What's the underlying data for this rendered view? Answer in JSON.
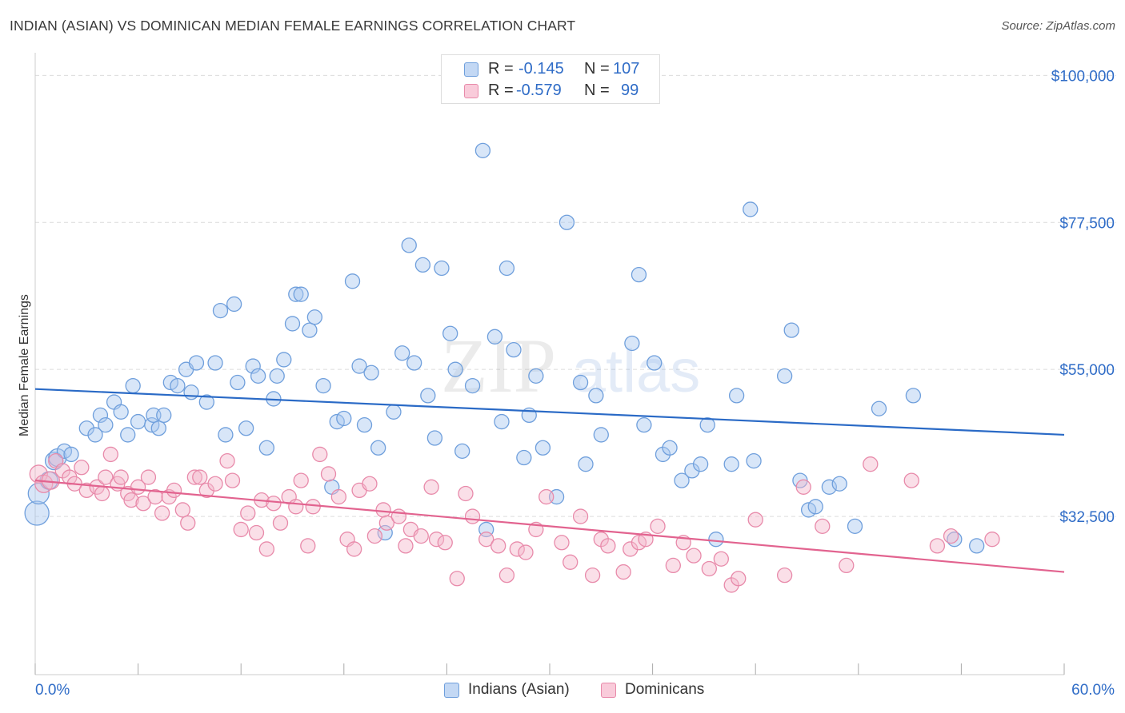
{
  "header": {
    "title": "INDIAN (ASIAN) VS DOMINICAN MEDIAN FEMALE EARNINGS CORRELATION CHART",
    "source": "Source: ZipAtlas.com"
  },
  "watermark": {
    "zip": "ZIP",
    "atlas": "atlas"
  },
  "stats_legend": {
    "rows": [
      {
        "r_label": "R =",
        "r_value": "-0.145",
        "n_label": "N =",
        "n_value": "107"
      },
      {
        "r_label": "R =",
        "r_value": "-0.579",
        "n_label": "N =",
        "n_value": "99"
      }
    ]
  },
  "bottom_legend": {
    "items": [
      {
        "label": "Indians (Asian)"
      },
      {
        "label": "Dominicans"
      }
    ]
  },
  "colors": {
    "blue_fill": "#a9c8ef",
    "blue_stroke": "#6f9fdc",
    "blue_line": "#2a6ac6",
    "pink_fill": "#f5b8cc",
    "pink_stroke": "#e88aaa",
    "pink_line": "#e2638f",
    "axis_label": "#2f6cc7",
    "grid": "#dcdcdc"
  },
  "chart_data": {
    "type": "scatter",
    "title": "INDIAN (ASIAN) VS DOMINICAN MEDIAN FEMALE EARNINGS CORRELATION CHART",
    "xlabel": "",
    "ylabel": "Median Female Earnings",
    "xlim": [
      0,
      60
    ],
    "ylim": [
      10000,
      102000
    ],
    "x_tick_labels": [
      "0.0%",
      "60.0%"
    ],
    "y_ticks": [
      32500,
      55000,
      77500,
      100000
    ],
    "y_tick_labels": [
      "$32,500",
      "$55,000",
      "$77,500",
      "$100,000"
    ],
    "grid": true,
    "legend_position": "top-center",
    "series": [
      {
        "name": "Indians (Asian)",
        "trend": {
          "x": [
            0,
            60
          ],
          "y": [
            52000,
            45000
          ]
        },
        "points": [
          [
            0.1,
            33000
          ],
          [
            0.2,
            36000
          ],
          [
            0.8,
            38000
          ],
          [
            1.1,
            41000
          ],
          [
            1.3,
            41500
          ],
          [
            1.7,
            42500
          ],
          [
            2.1,
            42000
          ],
          [
            3.0,
            46000
          ],
          [
            3.5,
            45000
          ],
          [
            3.8,
            48000
          ],
          [
            4.1,
            46500
          ],
          [
            4.6,
            50000
          ],
          [
            5.0,
            48500
          ],
          [
            5.4,
            45000
          ],
          [
            5.7,
            52500
          ],
          [
            6.0,
            47000
          ],
          [
            6.8,
            46500
          ],
          [
            6.9,
            48000
          ],
          [
            7.2,
            46000
          ],
          [
            7.5,
            48000
          ],
          [
            7.9,
            53000
          ],
          [
            8.3,
            52500
          ],
          [
            8.8,
            55000
          ],
          [
            9.1,
            51500
          ],
          [
            9.4,
            56000
          ],
          [
            10.0,
            50000
          ],
          [
            10.5,
            56000
          ],
          [
            10.8,
            64000
          ],
          [
            11.1,
            45000
          ],
          [
            11.6,
            65000
          ],
          [
            11.8,
            53000
          ],
          [
            12.3,
            46000
          ],
          [
            12.7,
            55500
          ],
          [
            13.0,
            54000
          ],
          [
            13.5,
            43000
          ],
          [
            13.9,
            50500
          ],
          [
            14.1,
            54000
          ],
          [
            14.5,
            56500
          ],
          [
            15.0,
            62000
          ],
          [
            15.2,
            66500
          ],
          [
            15.5,
            66500
          ],
          [
            16.0,
            61000
          ],
          [
            16.3,
            63000
          ],
          [
            16.8,
            52500
          ],
          [
            17.3,
            37000
          ],
          [
            17.6,
            47000
          ],
          [
            18.0,
            47500
          ],
          [
            18.5,
            68500
          ],
          [
            18.9,
            55500
          ],
          [
            19.2,
            46500
          ],
          [
            19.6,
            54500
          ],
          [
            20.0,
            43000
          ],
          [
            20.4,
            30000
          ],
          [
            20.9,
            48500
          ],
          [
            21.4,
            57500
          ],
          [
            21.8,
            74000
          ],
          [
            22.1,
            56000
          ],
          [
            22.6,
            71000
          ],
          [
            22.9,
            51000
          ],
          [
            23.3,
            44500
          ],
          [
            23.7,
            70500
          ],
          [
            24.2,
            60500
          ],
          [
            24.5,
            55000
          ],
          [
            24.9,
            42500
          ],
          [
            25.5,
            52500
          ],
          [
            26.1,
            88500
          ],
          [
            26.3,
            30500
          ],
          [
            26.8,
            60000
          ],
          [
            27.2,
            47000
          ],
          [
            27.5,
            70500
          ],
          [
            27.9,
            58000
          ],
          [
            28.5,
            41500
          ],
          [
            28.8,
            48000
          ],
          [
            29.2,
            54000
          ],
          [
            29.6,
            43000
          ],
          [
            30.4,
            35500
          ],
          [
            31.0,
            77500
          ],
          [
            31.8,
            53000
          ],
          [
            32.1,
            40500
          ],
          [
            32.7,
            51000
          ],
          [
            33.0,
            45000
          ],
          [
            34.8,
            59000
          ],
          [
            35.2,
            69500
          ],
          [
            35.5,
            46500
          ],
          [
            36.1,
            56000
          ],
          [
            36.6,
            42000
          ],
          [
            37.0,
            43000
          ],
          [
            37.7,
            38000
          ],
          [
            38.3,
            39500
          ],
          [
            38.8,
            40500
          ],
          [
            39.2,
            46500
          ],
          [
            39.7,
            29000
          ],
          [
            40.6,
            40500
          ],
          [
            40.9,
            51000
          ],
          [
            41.7,
            79500
          ],
          [
            41.9,
            41000
          ],
          [
            43.7,
            54000
          ],
          [
            44.1,
            61000
          ],
          [
            44.6,
            38000
          ],
          [
            45.1,
            33500
          ],
          [
            45.5,
            34000
          ],
          [
            46.3,
            37000
          ],
          [
            46.9,
            37500
          ],
          [
            47.8,
            31000
          ],
          [
            49.2,
            49000
          ],
          [
            51.2,
            51000
          ],
          [
            53.6,
            29000
          ],
          [
            54.9,
            28000
          ]
        ]
      },
      {
        "name": "Dominicans",
        "trend": {
          "x": [
            0,
            60
          ],
          "y": [
            38000,
            24000
          ]
        },
        "points": [
          [
            0.2,
            39000
          ],
          [
            0.5,
            37500
          ],
          [
            0.9,
            38000
          ],
          [
            1.2,
            41000
          ],
          [
            1.6,
            39500
          ],
          [
            2.0,
            38500
          ],
          [
            2.3,
            37500
          ],
          [
            2.7,
            40000
          ],
          [
            3.0,
            36500
          ],
          [
            3.6,
            37000
          ],
          [
            3.9,
            36000
          ],
          [
            4.1,
            38500
          ],
          [
            4.4,
            42000
          ],
          [
            4.8,
            37500
          ],
          [
            5.0,
            38500
          ],
          [
            5.4,
            36000
          ],
          [
            5.6,
            35000
          ],
          [
            6.0,
            37000
          ],
          [
            6.3,
            34500
          ],
          [
            6.6,
            38500
          ],
          [
            7.0,
            35500
          ],
          [
            7.4,
            33000
          ],
          [
            7.8,
            35500
          ],
          [
            8.1,
            36500
          ],
          [
            8.6,
            33500
          ],
          [
            8.9,
            31500
          ],
          [
            9.3,
            38500
          ],
          [
            9.6,
            38500
          ],
          [
            10.0,
            36500
          ],
          [
            10.5,
            37500
          ],
          [
            11.2,
            41000
          ],
          [
            11.5,
            38000
          ],
          [
            12.0,
            30500
          ],
          [
            12.4,
            33000
          ],
          [
            12.9,
            30000
          ],
          [
            13.2,
            35000
          ],
          [
            13.5,
            27500
          ],
          [
            13.9,
            34500
          ],
          [
            14.3,
            31500
          ],
          [
            14.8,
            35500
          ],
          [
            15.2,
            34000
          ],
          [
            15.5,
            38000
          ],
          [
            15.9,
            28000
          ],
          [
            16.2,
            34000
          ],
          [
            16.6,
            42000
          ],
          [
            17.1,
            39000
          ],
          [
            17.7,
            35500
          ],
          [
            18.2,
            29000
          ],
          [
            18.6,
            27500
          ],
          [
            18.9,
            36500
          ],
          [
            19.5,
            37500
          ],
          [
            19.8,
            29500
          ],
          [
            20.3,
            33500
          ],
          [
            20.5,
            31500
          ],
          [
            21.2,
            32500
          ],
          [
            21.6,
            28000
          ],
          [
            21.9,
            30500
          ],
          [
            22.5,
            29500
          ],
          [
            23.1,
            37000
          ],
          [
            23.4,
            29000
          ],
          [
            23.9,
            28500
          ],
          [
            24.6,
            23000
          ],
          [
            25.1,
            36000
          ],
          [
            25.5,
            32500
          ],
          [
            26.3,
            29000
          ],
          [
            27.0,
            28000
          ],
          [
            27.5,
            23500
          ],
          [
            28.1,
            27500
          ],
          [
            28.6,
            27000
          ],
          [
            29.2,
            30500
          ],
          [
            29.8,
            35500
          ],
          [
            30.7,
            28500
          ],
          [
            31.2,
            25500
          ],
          [
            31.8,
            32500
          ],
          [
            32.5,
            23500
          ],
          [
            33.0,
            29000
          ],
          [
            33.4,
            28000
          ],
          [
            34.3,
            24000
          ],
          [
            34.7,
            27500
          ],
          [
            35.2,
            28500
          ],
          [
            35.6,
            29000
          ],
          [
            36.3,
            31000
          ],
          [
            37.2,
            25000
          ],
          [
            37.8,
            28500
          ],
          [
            38.4,
            26500
          ],
          [
            39.3,
            24500
          ],
          [
            40.0,
            26000
          ],
          [
            40.6,
            22000
          ],
          [
            41.0,
            23000
          ],
          [
            42.0,
            32000
          ],
          [
            43.7,
            23500
          ],
          [
            44.8,
            37000
          ],
          [
            45.9,
            31000
          ],
          [
            47.3,
            25000
          ],
          [
            48.7,
            40500
          ],
          [
            51.1,
            38000
          ],
          [
            52.6,
            28000
          ],
          [
            53.4,
            29500
          ],
          [
            55.8,
            29000
          ]
        ]
      }
    ]
  }
}
